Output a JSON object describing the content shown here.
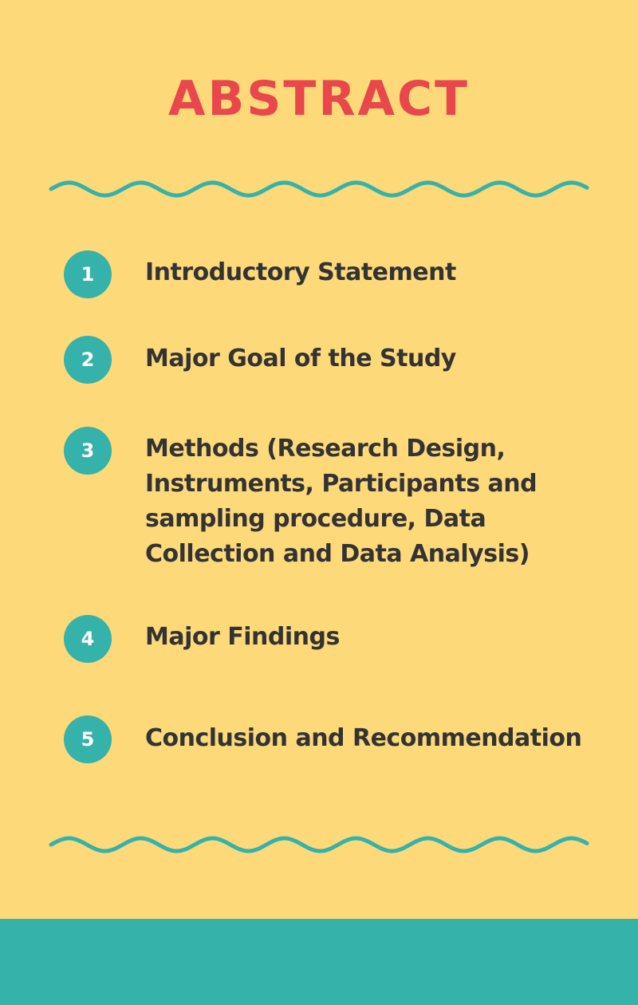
{
  "title": "ABSTRACT",
  "colors": {
    "background": "#FDD979",
    "title": "#E8474C",
    "accent": "#35B2AA",
    "text": "#333333",
    "number_text": "#FFFFFF"
  },
  "items": [
    {
      "number": "1",
      "label": "Introductory Statement"
    },
    {
      "number": "2",
      "label": "Major Goal of the Study"
    },
    {
      "number": "3",
      "label": "Methods (Research Design, Instruments, Participants and sampling procedure, Data Collection and Data Analysis)"
    },
    {
      "number": "4",
      "label": "Major Findings"
    },
    {
      "number": "5",
      "label": "Conclusion and Recommendation"
    }
  ]
}
